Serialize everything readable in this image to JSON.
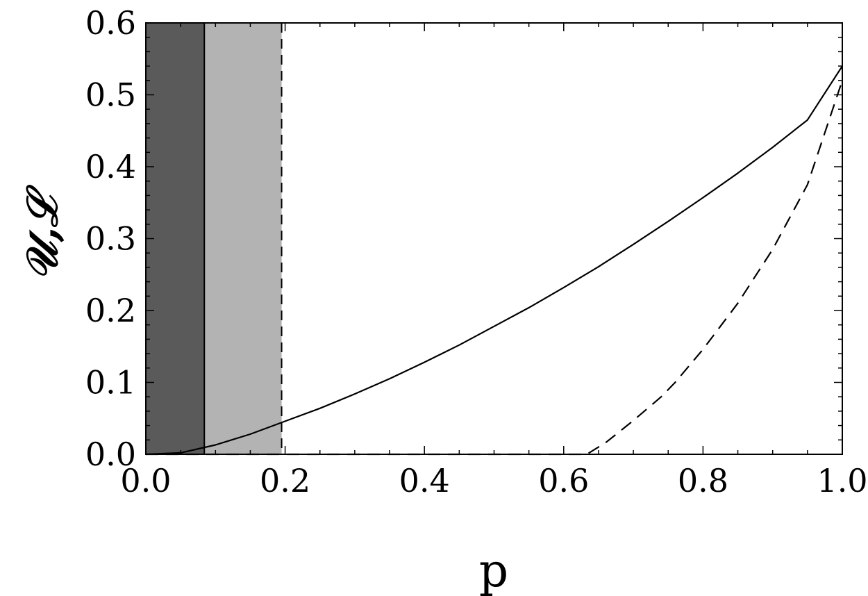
{
  "chart_data": {
    "type": "line",
    "title": "",
    "xlabel": "p",
    "ylabel": "𝒰,ℒ",
    "xlim": [
      0.0,
      1.0
    ],
    "ylim": [
      0.0,
      0.6
    ],
    "grid": false,
    "legend": "none",
    "x_ticks": [
      "0.0",
      "0.2",
      "0.4",
      "0.6",
      "0.8",
      "1.0"
    ],
    "y_ticks": [
      "0.0",
      "0.1",
      "0.2",
      "0.3",
      "0.4",
      "0.5",
      "0.6"
    ],
    "shaded_regions": [
      {
        "x_range": [
          0.0,
          0.084
        ],
        "color": "#5a5a5a"
      },
      {
        "x_range": [
          0.084,
          0.195
        ],
        "color": "#b3b3b3"
      }
    ],
    "vertical_lines": [
      {
        "x": 0.084,
        "style": "solid"
      },
      {
        "x": 0.195,
        "style": "dashed"
      }
    ],
    "series": [
      {
        "style": "solid",
        "x": [
          0.0,
          0.05,
          0.1,
          0.15,
          0.2,
          0.25,
          0.3,
          0.35,
          0.4,
          0.45,
          0.5,
          0.55,
          0.6,
          0.65,
          0.7,
          0.75,
          0.8,
          0.85,
          0.9,
          0.95,
          1.0
        ],
        "y": [
          0.0,
          0.002,
          0.013,
          0.028,
          0.046,
          0.064,
          0.084,
          0.105,
          0.128,
          0.152,
          0.178,
          0.204,
          0.232,
          0.261,
          0.292,
          0.324,
          0.357,
          0.391,
          0.427,
          0.465,
          0.54
        ]
      },
      {
        "style": "dashed",
        "x": [
          0.0,
          0.6,
          0.633,
          0.66,
          0.7,
          0.74,
          0.76,
          0.8,
          0.85,
          0.9,
          0.95,
          1.0
        ],
        "y": [
          0.0,
          0.0,
          0.0,
          0.016,
          0.047,
          0.08,
          0.1,
          0.146,
          0.21,
          0.285,
          0.375,
          0.52
        ]
      }
    ]
  }
}
